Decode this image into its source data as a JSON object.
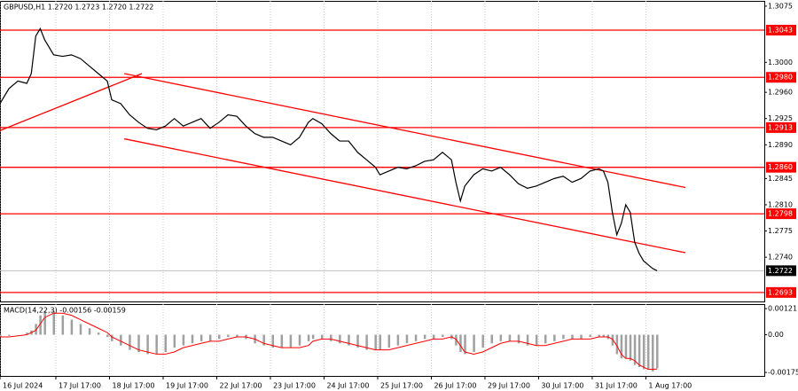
{
  "chart_data": [
    {
      "type": "price-line",
      "title": "GBPUSD,H1  1.2720 1.2723 1.2720 1.2722",
      "color": "#000000",
      "x": [
        0,
        4,
        8,
        12,
        14,
        16,
        18,
        20,
        24,
        28,
        32,
        36,
        40,
        44,
        48,
        50,
        54,
        58,
        62,
        66,
        70,
        74,
        78,
        82,
        86,
        90,
        94,
        98,
        102,
        106,
        110,
        114,
        118,
        122,
        126,
        130,
        134,
        138,
        140,
        144,
        148,
        152,
        156,
        160,
        164,
        168,
        170,
        174,
        178,
        182,
        186,
        190,
        194,
        198,
        202,
        204,
        206,
        208,
        212,
        216,
        220,
        224,
        228,
        232,
        236,
        240,
        244,
        248,
        252,
        256,
        260,
        264,
        268,
        270,
        272,
        274,
        276,
        278,
        280,
        282,
        284,
        286,
        288,
        290,
        292,
        294
      ],
      "values": [
        1.2945,
        1.2965,
        1.2975,
        1.2972,
        1.2985,
        1.3035,
        1.3045,
        1.303,
        1.301,
        1.3008,
        1.301,
        1.3005,
        1.2995,
        1.2985,
        1.2975,
        1.295,
        1.2945,
        1.293,
        1.292,
        1.2912,
        1.291,
        1.2915,
        1.2925,
        1.2915,
        1.292,
        1.2925,
        1.2912,
        1.292,
        1.293,
        1.2928,
        1.2915,
        1.2905,
        1.29,
        1.29,
        1.2895,
        1.289,
        1.29,
        1.292,
        1.2925,
        1.2918,
        1.2905,
        1.2895,
        1.2895,
        1.288,
        1.287,
        1.286,
        1.285,
        1.2855,
        1.286,
        1.2858,
        1.2862,
        1.2868,
        1.287,
        1.288,
        1.287,
        1.284,
        1.2815,
        1.2835,
        1.285,
        1.2858,
        1.2855,
        1.286,
        1.285,
        1.2838,
        1.2832,
        1.2835,
        1.284,
        1.2845,
        1.2848,
        1.284,
        1.2845,
        1.2855,
        1.2858,
        1.2855,
        1.284,
        1.28,
        1.277,
        1.2785,
        1.281,
        1.28,
        1.276,
        1.2745,
        1.2735,
        1.273,
        1.2725,
        1.2722
      ],
      "xlim": [
        0,
        342
      ],
      "xticks": [
        {
          "value": 0,
          "label": "16 Jul 2024"
        },
        {
          "value": 25,
          "label": "17 Jul 17:00"
        },
        {
          "value": 49,
          "label": "18 Jul 17:00"
        },
        {
          "value": 73,
          "label": "19 Jul 17:00"
        },
        {
          "value": 97,
          "label": "22 Jul 17:00"
        },
        {
          "value": 121,
          "label": "23 Jul 17:00"
        },
        {
          "value": 145,
          "label": "24 Jul 17:00"
        },
        {
          "value": 169,
          "label": "25 Jul 17:00"
        },
        {
          "value": 193,
          "label": "26 Jul 17:00"
        },
        {
          "value": 217,
          "label": "29 Jul 17:00"
        },
        {
          "value": 241,
          "label": "30 Jul 17:00"
        },
        {
          "value": 265,
          "label": "31 Jul 17:00"
        },
        {
          "value": 289,
          "label": "1 Aug 17:00"
        }
      ],
      "ylim": [
        1.2681,
        1.3082
      ],
      "yticks": [
        1.3075,
        {
          "value": 1.3,
          "label": "1.3000"
        },
        {
          "value": 1.296,
          "label": "1.2960"
        },
        1.2925,
        {
          "value": 1.289,
          "label": "1.2890"
        },
        1.2845,
        {
          "value": 1.281,
          "label": "1.2810"
        },
        1.2775,
        {
          "value": 1.274,
          "label": "1.2740"
        }
      ],
      "levels": [
        1.3043,
        {
          "value": 1.298,
          "label": "1.2980"
        },
        1.2913,
        {
          "value": 1.286,
          "label": "1.2860"
        },
        1.2798,
        1.2693
      ],
      "level_color": "#ff0000",
      "current_price": 1.2722,
      "trendlines": [
        {
          "x": [
            0,
            63.5
          ],
          "y": [
            1.2909,
            1.2985
          ]
        },
        {
          "x": [
            55.6,
            306.7
          ],
          "y": [
            1.2985,
            1.2833
          ]
        },
        {
          "x": [
            55.6,
            306.7
          ],
          "y": [
            1.2898,
            1.2746
          ]
        }
      ],
      "grid": true
    },
    {
      "type": "macd",
      "title": "MACD(14,22,3) -0.00156 -0.00159",
      "histogram_color": "#a0a0a0",
      "signal_color": "#ff0000",
      "values": [
        -0.0001,
        -5e-05,
        0,
        0.0001,
        0.0002,
        0.0005,
        0.0009,
        0.0011,
        0.0011,
        0.0009,
        0.0007,
        0.0005,
        0.0003,
        0.0001,
        -0.0001,
        -0.0003,
        -0.0005,
        -0.0007,
        -0.0008,
        -0.0009,
        -0.0009,
        -0.0008,
        -0.0006,
        -0.0005,
        -0.0004,
        -0.0003,
        -0.0003,
        -0.0002,
        -0.0001,
        -0.0001,
        -0.0002,
        -0.0004,
        -0.0005,
        -0.0006,
        -0.0006,
        -0.0006,
        -0.0005,
        -0.0003,
        -0.0002,
        -0.0002,
        -0.0003,
        -0.0004,
        -0.0005,
        -0.0006,
        -0.0007,
        -0.0007,
        -0.0007,
        -0.0006,
        -0.0005,
        -0.0004,
        -0.0003,
        -0.0002,
        -0.0002,
        -0.0001,
        -0.0002,
        -0.0005,
        -0.0008,
        -0.0009,
        -0.0008,
        -0.0006,
        -0.0004,
        -0.0003,
        -0.0003,
        -0.0004,
        -0.0005,
        -0.0005,
        -0.0004,
        -0.0003,
        -0.0002,
        -0.0002,
        -0.0002,
        -0.0001,
        -0.0001,
        -0.0001,
        -0.0002,
        -0.0005,
        -0.0009,
        -0.0011,
        -0.0011,
        -0.0012,
        -0.0014,
        -0.0015,
        -0.0016,
        -0.0016,
        -0.0017,
        -0.00156
      ],
      "signal": [
        -0.0001,
        -0.0001,
        -5e-05,
        0,
        0.0001,
        0.0002,
        0.0005,
        0.0008,
        0.001,
        0.001,
        0.0009,
        0.0007,
        0.0005,
        0.0003,
        0.0001,
        -0.0001,
        -0.0003,
        -0.0005,
        -0.0007,
        -0.0008,
        -0.0009,
        -0.0009,
        -0.0008,
        -0.0006,
        -0.0005,
        -0.0004,
        -0.0003,
        -0.0003,
        -0.0002,
        -0.0001,
        -0.0001,
        -0.0002,
        -0.0004,
        -0.0005,
        -0.0006,
        -0.0006,
        -0.0006,
        -0.0005,
        -0.0003,
        -0.0002,
        -0.0002,
        -0.0003,
        -0.0004,
        -0.0005,
        -0.0006,
        -0.0007,
        -0.0007,
        -0.0007,
        -0.0006,
        -0.0005,
        -0.0004,
        -0.0003,
        -0.0002,
        -0.0002,
        -0.0001,
        -0.0002,
        -0.0005,
        -0.0008,
        -0.0009,
        -0.0008,
        -0.0006,
        -0.0004,
        -0.0003,
        -0.0003,
        -0.0004,
        -0.0005,
        -0.0005,
        -0.0004,
        -0.0003,
        -0.0002,
        -0.0002,
        -0.0002,
        -0.0001,
        -0.0001,
        -0.0001,
        -0.0002,
        -0.0005,
        -0.0009,
        -0.0011,
        -0.0011,
        -0.0012,
        -0.0014,
        -0.0015,
        -0.0016,
        -0.0016,
        -0.00159
      ],
      "ylim": [
        -0.00191,
        0.00142
      ],
      "yticks": [
        0.00121,
        {
          "value": 0,
          "label": "0.00"
        },
        -0.00175
      ]
    }
  ]
}
